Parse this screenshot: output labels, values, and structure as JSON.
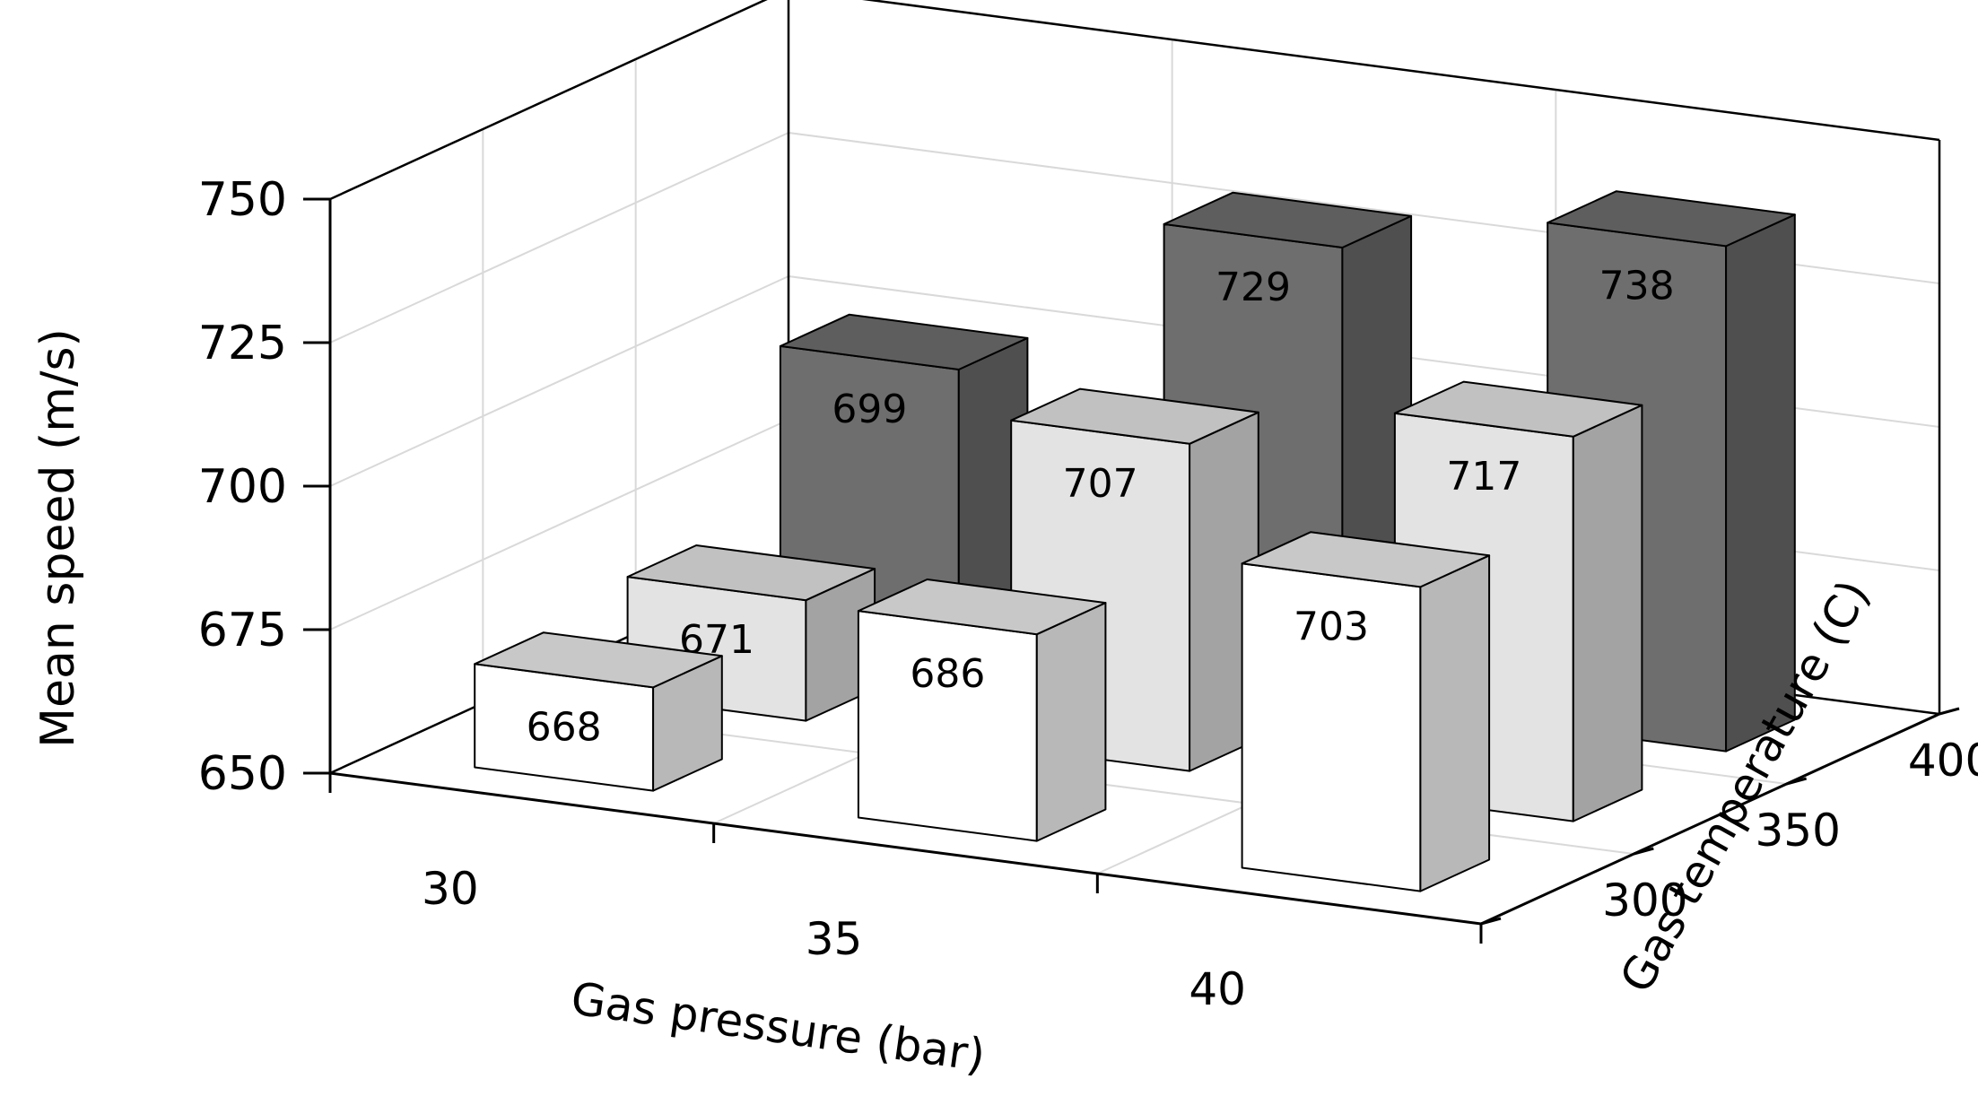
{
  "chart_data": {
    "type": "bar",
    "subtype": "3d-column",
    "title": "",
    "xlabel": "Gas pressure (bar)",
    "ylabel": "Mean speed (m/s)",
    "zlabel": "Gas temperature (C)",
    "x_categories": [
      "30",
      "35",
      "40"
    ],
    "z_categories": [
      "300",
      "350",
      "400"
    ],
    "ylim": [
      650,
      750
    ],
    "yticks": [
      "650",
      "675",
      "700",
      "725",
      "750"
    ],
    "grid": true,
    "legend": "none",
    "series": [
      {
        "values": [
          668,
          686,
          703
        ],
        "color": "#ffffff"
      },
      {
        "values": [
          671,
          707,
          717
        ],
        "color": "#e3e3e3"
      },
      {
        "values": [
          699,
          729,
          738
        ],
        "color": "#6e6e6e"
      }
    ]
  }
}
